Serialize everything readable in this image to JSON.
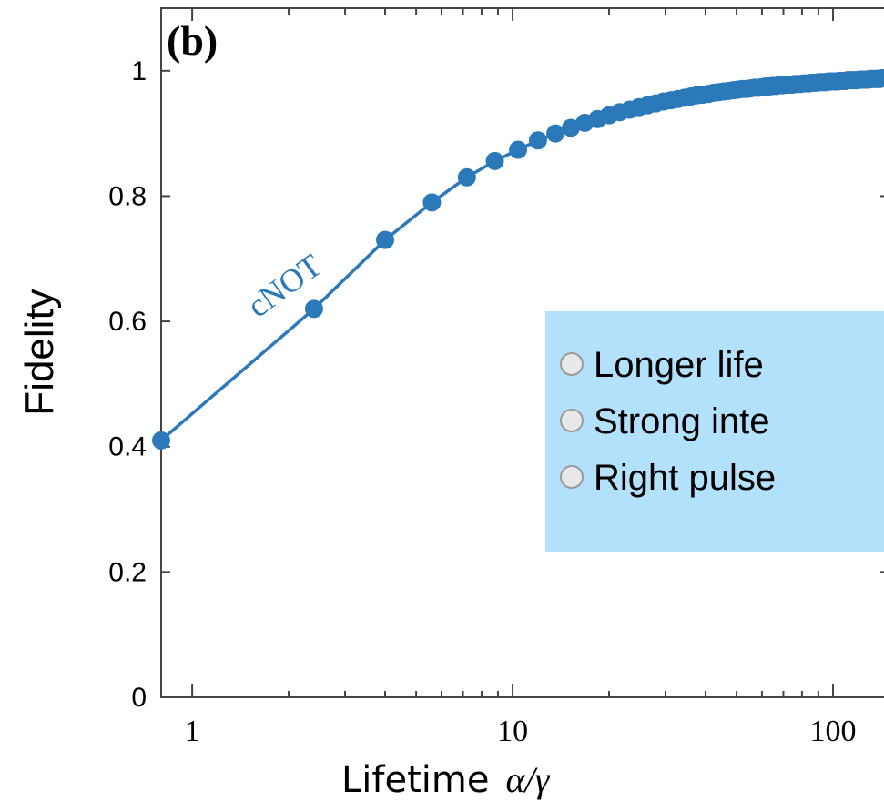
{
  "chart_data": {
    "type": "line",
    "panel_label": "(b)",
    "xlabel": "Lifetime",
    "xlabel_math": "α/γ",
    "ylabel": "Fidelity",
    "x_scale": "log",
    "xlim": [
      0.8,
      150
    ],
    "ylim": [
      0,
      1.1
    ],
    "x_ticks": [
      1,
      10,
      100
    ],
    "x_tick_labels": [
      "1",
      "10",
      "100"
    ],
    "y_ticks": [
      0,
      0.2,
      0.4,
      0.6,
      0.8,
      1
    ],
    "y_tick_labels": [
      "0",
      "0.2",
      "0.4",
      "0.6",
      "0.8",
      "1"
    ],
    "series": [
      {
        "name": "cNOT",
        "color": "#2b79b9",
        "x": [
          0.8,
          2.4,
          4.0,
          5.6,
          7.2,
          8.8,
          10.4,
          12.0,
          13.6,
          15.2,
          16.8,
          18.4,
          20.0,
          21.6,
          23.2,
          24.8,
          26.4,
          28.0,
          29.6,
          31.2,
          32.8,
          34.4,
          36.0,
          37.6,
          39.2,
          40.8,
          42.4,
          44.0,
          45.6,
          47.2,
          48.8,
          50.4,
          52.0,
          53.6,
          55.2,
          56.8,
          58.4,
          60.0,
          61.6,
          63.2,
          64.8,
          66.4,
          68.0,
          69.6,
          71.2,
          72.8,
          74.4,
          76.0,
          77.6,
          79.2,
          80.8,
          82.4,
          84.0,
          85.6,
          87.2,
          88.8,
          90.4,
          92.0,
          93.6,
          95.2,
          96.8,
          98.4,
          100.0,
          101.6,
          103.2,
          104.8,
          106.4,
          108.0,
          109.6,
          111.2,
          112.8,
          114.4,
          116.0,
          117.6,
          119.2,
          120.8,
          122.4,
          124.0,
          125.6,
          127.2,
          128.8,
          130.4,
          132.0,
          133.6,
          135.2,
          136.8,
          138.4,
          140.0,
          141.6,
          143.2,
          144.8,
          146.4,
          148.0
        ],
        "y": [
          0.41,
          0.62,
          0.73,
          0.79,
          0.83,
          0.856,
          0.874,
          0.889,
          0.9,
          0.909,
          0.917,
          0.923,
          0.929,
          0.934,
          0.938,
          0.942,
          0.945,
          0.948,
          0.951,
          0.953,
          0.955,
          0.957,
          0.959,
          0.961,
          0.962,
          0.963,
          0.965,
          0.966,
          0.967,
          0.968,
          0.969,
          0.97,
          0.971,
          0.971,
          0.972,
          0.973,
          0.973,
          0.974,
          0.975,
          0.975,
          0.976,
          0.976,
          0.977,
          0.977,
          0.978,
          0.978,
          0.978,
          0.979,
          0.979,
          0.979,
          0.98,
          0.98,
          0.98,
          0.981,
          0.981,
          0.981,
          0.982,
          0.982,
          0.982,
          0.982,
          0.983,
          0.983,
          0.983,
          0.983,
          0.983,
          0.984,
          0.984,
          0.984,
          0.984,
          0.985,
          0.985,
          0.985,
          0.985,
          0.985,
          0.985,
          0.986,
          0.986,
          0.986,
          0.986,
          0.986,
          0.986,
          0.987,
          0.987,
          0.987,
          0.987,
          0.987,
          0.987,
          0.987,
          0.988,
          0.988,
          0.988,
          0.988,
          0.988
        ]
      }
    ],
    "grid": false
  },
  "callout": {
    "background": "#b3e0fa",
    "items": [
      "Longer life",
      "Strong inte",
      "Right pulse"
    ]
  }
}
